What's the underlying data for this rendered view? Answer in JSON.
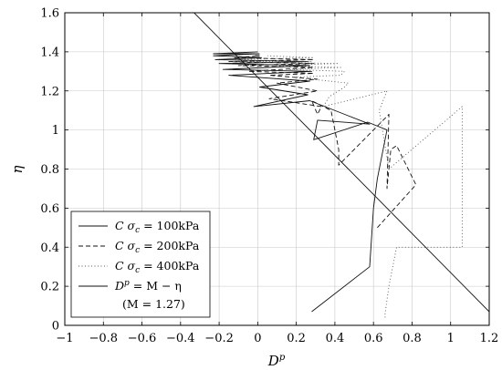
{
  "chart_data": {
    "type": "line",
    "title": "",
    "xlabel": "D",
    "xlabel_sup": "p",
    "ylabel": "η",
    "xlim": [
      -1,
      1.2
    ],
    "ylim": [
      0,
      1.6
    ],
    "xticks": [
      -1,
      -0.8,
      -0.6,
      -0.4,
      -0.2,
      0,
      0.2,
      0.4,
      0.6,
      0.8,
      1,
      1.2
    ],
    "xtick_labels": [
      "−1",
      "−0.8",
      "−0.6",
      "−0.4",
      "−0.2",
      "0",
      "0.2",
      "0.4",
      "0.6",
      "0.8",
      "1",
      "1.2"
    ],
    "yticks": [
      0,
      0.2,
      0.4,
      0.6,
      0.8,
      1,
      1.2,
      1.4,
      1.6
    ],
    "ytick_labels": [
      "0",
      "0.2",
      "0.4",
      "0.6",
      "0.8",
      "1",
      "1.2",
      "1.4",
      "1.6"
    ],
    "grid": true,
    "legend_position": "bottom-left",
    "series": [
      {
        "name": "C σc = 100kPa",
        "legend": {
          "pre": "C  σ",
          "sub": "c",
          "post": " = 100kPa"
        },
        "style": "solid",
        "x": [
          0.28,
          0.58,
          0.6,
          0.62,
          0.67,
          0.57,
          0.29,
          0.31,
          0.58,
          0.27,
          -0.02,
          0.26,
          0.01,
          0.27,
          -0.15,
          0.28,
          -0.18,
          0.27,
          -0.2,
          0.26,
          -0.22,
          0.02,
          -0.23,
          0.0,
          -0.23,
          0.0
        ],
        "y": [
          0.07,
          0.3,
          0.6,
          0.75,
          1.0,
          1.04,
          0.95,
          1.05,
          1.03,
          1.15,
          1.12,
          1.18,
          1.22,
          1.25,
          1.28,
          1.3,
          1.31,
          1.33,
          1.34,
          1.35,
          1.36,
          1.37,
          1.38,
          1.39,
          1.39,
          1.4
        ]
      },
      {
        "name": "C σc = 200kPa",
        "legend": {
          "pre": "C  σ",
          "sub": "c",
          "post": " = 200kPa"
        },
        "style": "dashed",
        "x": [
          0.62,
          0.82,
          0.72,
          0.69,
          0.67,
          0.68,
          0.42,
          0.42,
          0.38,
          0.28,
          0.31,
          0.33,
          0.06,
          0.31,
          0.1,
          0.31,
          0.06,
          0.29,
          -0.05,
          0.29,
          -0.1,
          0.29,
          -0.15,
          0.29,
          -0.12,
          0.01
        ],
        "y": [
          0.5,
          0.72,
          0.92,
          0.9,
          0.7,
          1.08,
          0.82,
          0.9,
          1.1,
          1.15,
          1.08,
          1.12,
          1.16,
          1.2,
          1.24,
          1.26,
          1.28,
          1.29,
          1.3,
          1.32,
          1.33,
          1.34,
          1.35,
          1.36,
          1.37,
          1.38
        ]
      },
      {
        "name": "C σc = 400kPa",
        "legend": {
          "pre": "C  σ",
          "sub": "c",
          "post": " = 400kPa"
        },
        "style": "dotted",
        "x": [
          0.66,
          0.66,
          0.68,
          0.72,
          1.06,
          1.06,
          0.68,
          0.63,
          0.65,
          0.67,
          0.34,
          0.37,
          0.45,
          0.47,
          0.18,
          0.43,
          0.45,
          0.16,
          0.43,
          0.09,
          0.42,
          -0.12,
          0.28,
          -0.14,
          0.29,
          0.05
        ],
        "y": [
          0.04,
          0.06,
          0.2,
          0.4,
          0.4,
          1.12,
          0.8,
          1.1,
          1.15,
          1.2,
          1.12,
          1.17,
          1.22,
          1.24,
          1.27,
          1.28,
          1.3,
          1.31,
          1.32,
          1.33,
          1.34,
          1.35,
          1.35,
          1.36,
          1.37,
          1.38
        ]
      },
      {
        "name": "Dp = M − η",
        "legend": {
          "pre": "D",
          "sup": "p",
          "post": " = M − η"
        },
        "legend_line2": "(M = 1.27)",
        "style": "solid",
        "x": [
          -0.49,
          1.2
        ],
        "y": [
          1.76,
          0.07
        ]
      }
    ]
  }
}
